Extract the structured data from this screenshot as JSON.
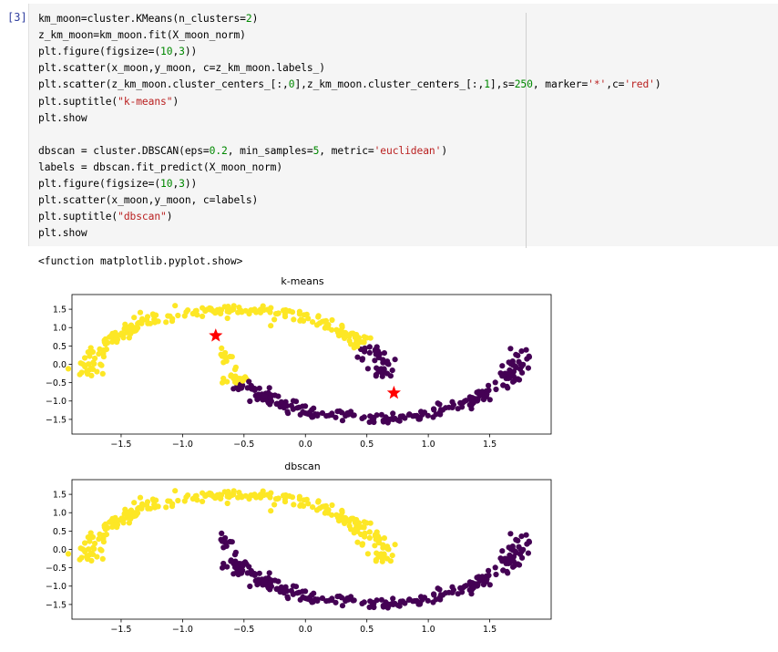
{
  "cell": {
    "prompt": "[3]",
    "code_lines": [
      [
        {
          "t": "km_moon=cluster.KMeans(n_clusters="
        },
        {
          "t": "2",
          "c": "num"
        },
        {
          "t": ")"
        }
      ],
      [
        {
          "t": "z_km_moon=km_moon.fit(X_moon_norm)"
        }
      ],
      [
        {
          "t": "plt.figure(figsize=("
        },
        {
          "t": "10",
          "c": "num"
        },
        {
          "t": ","
        },
        {
          "t": "3",
          "c": "num"
        },
        {
          "t": "))"
        }
      ],
      [
        {
          "t": "plt.scatter(x_moon,y_moon, c=z_km_moon.labels_)"
        }
      ],
      [
        {
          "t": "plt.scatter(z_km_moon.cluster_centers_[:,"
        },
        {
          "t": "0",
          "c": "num"
        },
        {
          "t": "],z_km_moon.cluster_centers_[:,"
        },
        {
          "t": "1",
          "c": "num"
        },
        {
          "t": "],s="
        },
        {
          "t": "250",
          "c": "num"
        },
        {
          "t": ", marker="
        },
        {
          "t": "'*'",
          "c": "str"
        },
        {
          "t": ",c="
        },
        {
          "t": "'red'",
          "c": "str"
        },
        {
          "t": ")"
        }
      ],
      [
        {
          "t": "plt.suptitle("
        },
        {
          "t": "\"k-means\"",
          "c": "str"
        },
        {
          "t": ")"
        }
      ],
      [
        {
          "t": "plt.show"
        }
      ],
      [
        {
          "t": ""
        }
      ],
      [
        {
          "t": "dbscan = cluster.DBSCAN(eps="
        },
        {
          "t": "0.2",
          "c": "num"
        },
        {
          "t": ", min_samples="
        },
        {
          "t": "5",
          "c": "num"
        },
        {
          "t": ", metric="
        },
        {
          "t": "'euclidean'",
          "c": "str"
        },
        {
          "t": ")"
        }
      ],
      [
        {
          "t": "labels = dbscan.fit_predict(X_moon_norm)"
        }
      ],
      [
        {
          "t": "plt.figure(figsize=("
        },
        {
          "t": "10",
          "c": "num"
        },
        {
          "t": ","
        },
        {
          "t": "3",
          "c": "num"
        },
        {
          "t": "))"
        }
      ],
      [
        {
          "t": "plt.scatter(x_moon,y_moon, c=labels)"
        }
      ],
      [
        {
          "t": "plt.suptitle("
        },
        {
          "t": "\"dbscan\"",
          "c": "str"
        },
        {
          "t": ")"
        }
      ],
      [
        {
          "t": "plt.show"
        }
      ]
    ],
    "output_text": "<function matplotlib.pyplot.show>"
  },
  "colors": {
    "cluster_yellow": "#fde725",
    "cluster_purple": "#440154",
    "center_red": "#ff0000",
    "code_number": "#008800",
    "code_string": "#ba2121",
    "prompt": "#303f9f"
  },
  "chart_data": [
    {
      "type": "scatter",
      "title": "k-means",
      "xlim": [
        -1.9,
        2.0
      ],
      "ylim": [
        -1.9,
        1.9
      ],
      "xticks": [
        -1.5,
        -1.0,
        -0.5,
        0.0,
        0.5,
        1.0,
        1.5
      ],
      "xtick_labels": [
        "−1.5",
        "−1.0",
        "−0.5",
        "0.0",
        "0.5",
        "1.0",
        "1.5"
      ],
      "yticks": [
        1.5,
        1.0,
        0.5,
        0.0,
        -0.5,
        -1.0,
        -1.5
      ],
      "ytick_labels": [
        "1.5",
        "1.0",
        "0.5",
        "0.0",
        "−0.5",
        "−1.0",
        "−1.5"
      ],
      "grid": false,
      "labeling": "kmeans",
      "centers": [
        {
          "x": -0.73,
          "y": 0.78
        },
        {
          "x": 0.72,
          "y": -0.78
        }
      ]
    },
    {
      "type": "scatter",
      "title": "dbscan",
      "xlim": [
        -1.9,
        2.0
      ],
      "ylim": [
        -1.9,
        1.9
      ],
      "xticks": [
        -1.5,
        -1.0,
        -0.5,
        0.0,
        0.5,
        1.0,
        1.5
      ],
      "xtick_labels": [
        "−1.5",
        "−1.0",
        "−0.5",
        "0.0",
        "0.5",
        "1.0",
        "1.5"
      ],
      "yticks": [
        1.5,
        1.0,
        0.5,
        0.0,
        -0.5,
        -1.0,
        -1.5
      ],
      "ytick_labels": [
        "1.5",
        "1.0",
        "0.5",
        "0.0",
        "−0.5",
        "−1.0",
        "−1.5"
      ],
      "grid": false,
      "labeling": "moon",
      "centers": []
    }
  ]
}
